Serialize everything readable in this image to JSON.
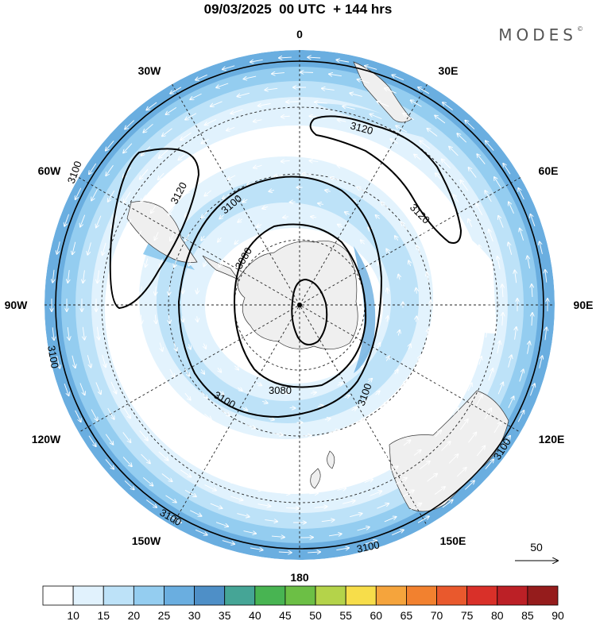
{
  "title": "09/03/2025  00 UTC  + 144 hrs",
  "logo": "MODES",
  "logo_mark": "©",
  "longitude_labels": {
    "top": "0",
    "top_right": "30E",
    "right_upper": "60E",
    "right": "90E",
    "right_lower": "120E",
    "bottom_right": "150E",
    "bottom": "180",
    "bottom_left": "150W",
    "left_lower": "120W",
    "left": "90W",
    "left_upper": "60W",
    "top_left": "30W"
  },
  "contour_labels": {
    "c3120_left": "3120",
    "c3120_top": "3120",
    "c3120_right": "3120",
    "c3100_upper": "3100",
    "c3100_right": "3100",
    "c3100_lower": "3100",
    "c3100_bl": "3100",
    "c3100_bottom": "3100",
    "c3100_far_left": "3100",
    "c3100_left_edge": "3100",
    "c3100_right_edge": "3100",
    "c3080_upper": "3080",
    "c3080_lower": "3080"
  },
  "vector_reference": "50",
  "colorbar": {
    "labels": [
      "10",
      "15",
      "20",
      "25",
      "30",
      "35",
      "40",
      "45",
      "50",
      "55",
      "60",
      "65",
      "70",
      "75",
      "80",
      "85",
      "90"
    ],
    "colors": [
      "#ffffff",
      "#e1f2fd",
      "#bde2f8",
      "#94cdf0",
      "#6aaee0",
      "#4e8fc7",
      "#45a596",
      "#48b452",
      "#6cbf45",
      "#b4d34a",
      "#f7dd4a",
      "#f5a43c",
      "#f2812f",
      "#e9592d",
      "#d93029",
      "#bc2026",
      "#951c1c"
    ]
  },
  "colors": {
    "land": "#efefef",
    "wind_ring_outer": "#6aaee0",
    "wind_ring_mid": "#94cdf0",
    "wind_ring_inner": "#bde2f8",
    "wind_faint": "#e1f2fd"
  }
}
